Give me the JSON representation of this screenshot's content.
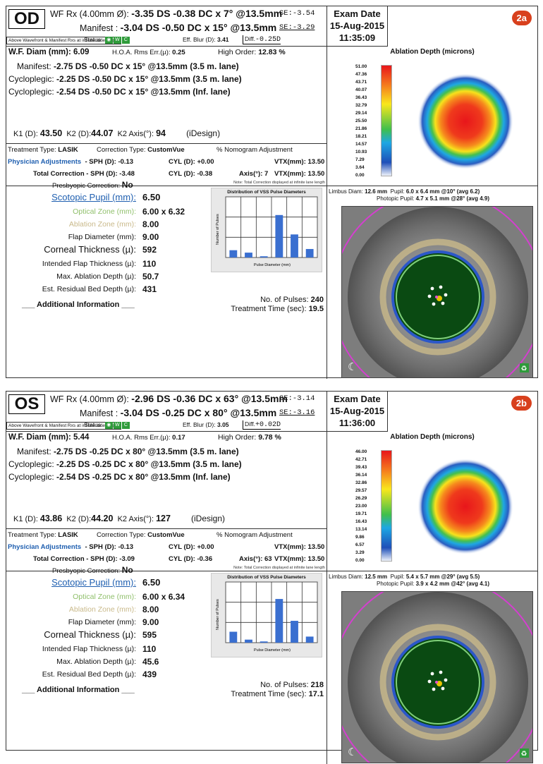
{
  "panels": [
    {
      "eye": "OD",
      "badge": "2a",
      "wf_rx_label": "WF Rx (4.00mm Ø):",
      "wf_rx_value": "-3.35 DS -0.38 DC  x 7° @13.5mm",
      "manifest_label": "Manifest :",
      "manifest_value": "-3.04 DS -0.50 DC x 15° @13.5mm",
      "se1": "SE:-3.54",
      "se2": "SE:-3.29",
      "above_note": "Above Wavefront & Manifest Rxs at infinite lane length",
      "status_label": "Status:",
      "eff_blur_label": "Eff. Blur (D):",
      "eff_blur_value": "3.41",
      "diff_label": "Diff.",
      "diff_value": "-0.25D",
      "exam_label": "Exam Date",
      "exam_date": "15-Aug-2015",
      "exam_time": "11:35:09",
      "wf_diam_label": "W.F. Diam (mm):",
      "wf_diam_value": "6.09",
      "hoa_label": "H.O.A. Rms Err.(µ):",
      "hoa_value": "0.25",
      "high_order_label": "High Order:",
      "high_order_value": "12.83 %",
      "manifest_rx_label": "Manifest:",
      "manifest_rx_value": "-2.75 DS -0.50 DC x 15° @13.5mm (3.5 m. lane)",
      "cyclo1_label": "Cycloplegic:",
      "cyclo1_value": "-2.25 DS -0.50 DC x 15° @13.5mm (3.5 m. lane)",
      "cyclo2_label": "Cycloplegic:",
      "cyclo2_value": "-2.54 DS -0.50 DC x 15° @13.5mm (Inf. lane)",
      "k1_label": "K1 (D):",
      "k1_value": "43.50",
      "k2_label": "K2 (D):",
      "k2_value": "44.07",
      "k2axis_label": "K2 Axis(°):",
      "k2axis_value": "94",
      "idesign": "(iDesign)",
      "treat_type_label": "Treatment Type:",
      "treat_type_value": "LASIK",
      "corr_type_label": "Correction Type:",
      "corr_type_value": "CustomVue",
      "nomogram": "% Nomogram Adjustment",
      "phys_adj": "Physician Adjustments",
      "sph_label": "- SPH (D):",
      "sph_value": "-0.13",
      "cyl_label": "CYL (D):",
      "cyl_value": "+0.00",
      "vtx_label": "VTX(mm):",
      "vtx_value": "13.50",
      "total_corr_label": "Total Correction - SPH (D):",
      "total_sph_value": "-3.48",
      "total_cyl_label": "CYL (D):",
      "total_cyl_value": "-0.38",
      "axis_label": "Axis(°):",
      "axis_value": "7",
      "vtx2_label": "VTX(mm):",
      "vtx2_value": "13.50",
      "presbyopic_label": "Presbyopic Correction:",
      "presbyopic_value": "No",
      "total_note": "Note: Total Correction displayed at infinite lane length",
      "scotopic_label": "Scotopic Pupil (mm):",
      "scotopic_value": "6.50",
      "optical_label": "Optical Zone (mm):",
      "optical_value": "6.00 x 6.32",
      "ablation_zone_label": "Ablation Zone (mm):",
      "ablation_zone_value": "8.00",
      "flap_diam_label": "Flap Diameter (mm):",
      "flap_diam_value": "9.00",
      "corneal_label": "Corneal Thickness (µ):",
      "corneal_value": "592",
      "flap_thick_label": "Intended Flap Thickness (µ):",
      "flap_thick_value": "110",
      "max_abl_label": "Max. Ablation Depth (µ):",
      "max_abl_value": "50.7",
      "residual_label": "Est. Residual Bed Depth (µ):",
      "residual_value": "431",
      "additional": "Additional Information",
      "hist_title": "Distribution of VSS Pulse Diameters",
      "hist_ylabel": "Number of Pulses",
      "hist_xlabel": "Pulse Diameter (mm)",
      "hist_bars": [
        0.12,
        0.08,
        0.02,
        0.7,
        0.38,
        0.14
      ],
      "pulses_label": "No. of Pulses:",
      "pulses_value": "240",
      "treat_time_label": "Treatment Time (sec):",
      "treat_time_value": "19.5",
      "ablation_title": "Ablation Depth (microns)",
      "scale_labels": [
        "51.00",
        "47.36",
        "43.71",
        "40.07",
        "36.43",
        "32.79",
        "29.14",
        "25.50",
        "21.86",
        "18.21",
        "14.57",
        "10.93",
        "7.29",
        "3.64",
        "0.00"
      ],
      "limbus_label": "Limbus Diam:",
      "limbus_value": "12.6 mm",
      "pupil_label": "Pupil:",
      "pupil_value": "6.0 x 6.4 mm @10° (avg 6.2)",
      "photopic_label": "Photopic Pupil:",
      "photopic_value": "4.7 x 5.1 mm @28° (avg 4.9)"
    },
    {
      "eye": "OS",
      "badge": "2b",
      "wf_rx_label": "WF Rx (4.00mm Ø):",
      "wf_rx_value": "-2.96 DS -0.36 DC x 63° @13.5mm",
      "manifest_label": "Manifest :",
      "manifest_value": "-3.04 DS -0.25 DC x 80° @13.5mm",
      "se1": "SE:-3.14",
      "se2": "SE:-3.16",
      "above_note": "Above Wavefront & Manifest Rxs at infinite lane length",
      "status_label": "Status:",
      "eff_blur_label": "Eff. Blur (D):",
      "eff_blur_value": "3.05",
      "diff_label": "Diff.",
      "diff_value": "+0.02D",
      "exam_label": "Exam Date",
      "exam_date": "15-Aug-2015",
      "exam_time": "11:36:00",
      "wf_diam_label": "W.F. Diam (mm):",
      "wf_diam_value": "5.44",
      "hoa_label": "H.O.A. Rms Err.(µ):",
      "hoa_value": "0.17",
      "high_order_label": "High Order:",
      "high_order_value": "9.78 %",
      "manifest_rx_label": "Manifest:",
      "manifest_rx_value": "-2.75 DS -0.25 DC x 80° @13.5mm (3.5 m. lane)",
      "cyclo1_label": "Cycloplegic:",
      "cyclo1_value": "-2.25 DS -0.25 DC x 80° @13.5mm (3.5 m. lane)",
      "cyclo2_label": "Cycloplegic:",
      "cyclo2_value": "-2.54 DS -0.25 DC x 80° @13.5mm (Inf. lane)",
      "k1_label": "K1 (D):",
      "k1_value": "43.86",
      "k2_label": "K2 (D):",
      "k2_value": "44.20",
      "k2axis_label": "K2 Axis(°):",
      "k2axis_value": "127",
      "idesign": "(iDesign)",
      "treat_type_label": "Treatment Type:",
      "treat_type_value": "LASIK",
      "corr_type_label": "Correction Type:",
      "corr_type_value": "CustomVue",
      "nomogram": "% Nomogram Adjustment",
      "phys_adj": "Physician Adjustments",
      "sph_label": "- SPH (D):",
      "sph_value": "-0.13",
      "cyl_label": "CYL (D):",
      "cyl_value": "+0.00",
      "vtx_label": "VTX(mm):",
      "vtx_value": "13.50",
      "total_corr_label": "Total Correction - SPH (D):",
      "total_sph_value": "-3.09",
      "total_cyl_label": "CYL (D):",
      "total_cyl_value": "-0.36",
      "axis_label": "Axis(°):",
      "axis_value": "63",
      "vtx2_label": "VTX(mm):",
      "vtx2_value": "13.50",
      "presbyopic_label": "Presbyopic Correction:",
      "presbyopic_value": "No",
      "total_note": "Note: Total Correction displayed at infinite lane length",
      "scotopic_label": "Scotopic Pupil (mm):",
      "scotopic_value": "6.50",
      "optical_label": "Optical Zone (mm):",
      "optical_value": "6.00 x 6.34",
      "ablation_zone_label": "Ablation Zone (mm):",
      "ablation_zone_value": "8.00",
      "flap_diam_label": "Flap Diameter (mm):",
      "flap_diam_value": "9.00",
      "corneal_label": "Corneal Thickness (µ):",
      "corneal_value": "595",
      "flap_thick_label": "Intended Flap Thickness (µ):",
      "flap_thick_value": "110",
      "max_abl_label": "Max. Ablation Depth (µ):",
      "max_abl_value": "45.6",
      "residual_label": "Est. Residual Bed Depth (µ):",
      "residual_value": "439",
      "additional": "Additional Information",
      "hist_title": "Distribution of VSS Pulse Diameters",
      "hist_ylabel": "Number of Pulses",
      "hist_xlabel": "Pulse Diameter (mm)",
      "hist_bars": [
        0.18,
        0.05,
        0.02,
        0.72,
        0.36,
        0.1
      ],
      "pulses_label": "No. of Pulses:",
      "pulses_value": "218",
      "treat_time_label": "Treatment Time (sec):",
      "treat_time_value": "17.1",
      "ablation_title": "Ablation Depth (microns)",
      "scale_labels": [
        "46.00",
        "42.71",
        "39.43",
        "36.14",
        "32.86",
        "29.57",
        "26.29",
        "23.00",
        "19.71",
        "16.43",
        "13.14",
        "9.86",
        "6.57",
        "3.29",
        "0.00"
      ],
      "limbus_label": "Limbus Diam:",
      "limbus_value": "12.5 mm",
      "pupil_label": "Pupil:",
      "pupil_value": "5.4 x 5.7 mm @29° (avg 5.5)",
      "photopic_label": "Photopic Pupil:",
      "photopic_value": "3.9 x 4.2 mm @42° (avg 4.1)"
    }
  ],
  "colors": {
    "badge": "#d8401d",
    "physician_blue": "#1f5fb0",
    "optical_zone": "#8fbf6a",
    "ablation_zone": "#c9b98a",
    "status_green": "#2e9b3a"
  },
  "icons": [
    "eye-status-icon",
    "moon-icon",
    "recycle-icon"
  ]
}
